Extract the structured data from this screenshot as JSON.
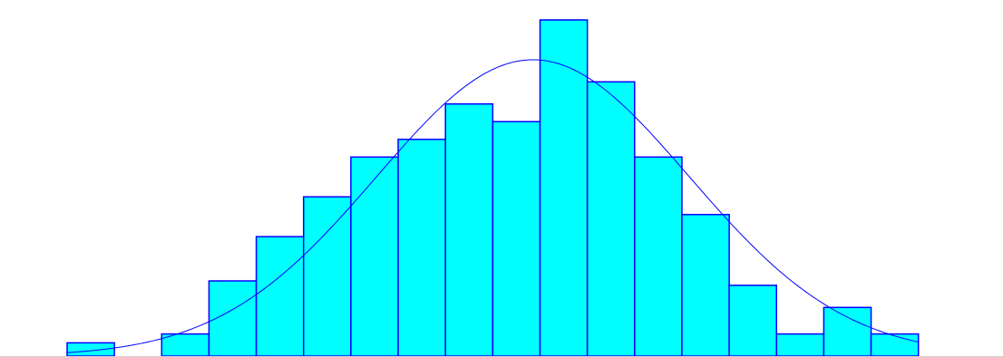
{
  "chart_data": {
    "type": "bar",
    "subtype": "histogram-with-normal-curve",
    "title": "",
    "xlabel": "",
    "ylabel": "",
    "grid": false,
    "legend": "none",
    "bins": 18,
    "values": [
      3,
      0,
      5,
      17,
      27,
      36,
      45,
      49,
      57,
      53,
      76,
      62,
      45,
      32,
      16,
      5,
      11,
      5
    ],
    "ylim": [
      0,
      76
    ],
    "curve": {
      "type": "normal",
      "peak_bin": 9.85,
      "sd_bins": 3.3,
      "peak_value": 67
    },
    "colors": {
      "bar_fill": "#00ffff",
      "bar_stroke": "#0000ff",
      "curve": "#0000ff",
      "baseline": "#d3d3d3",
      "background": "#ffffff"
    }
  }
}
